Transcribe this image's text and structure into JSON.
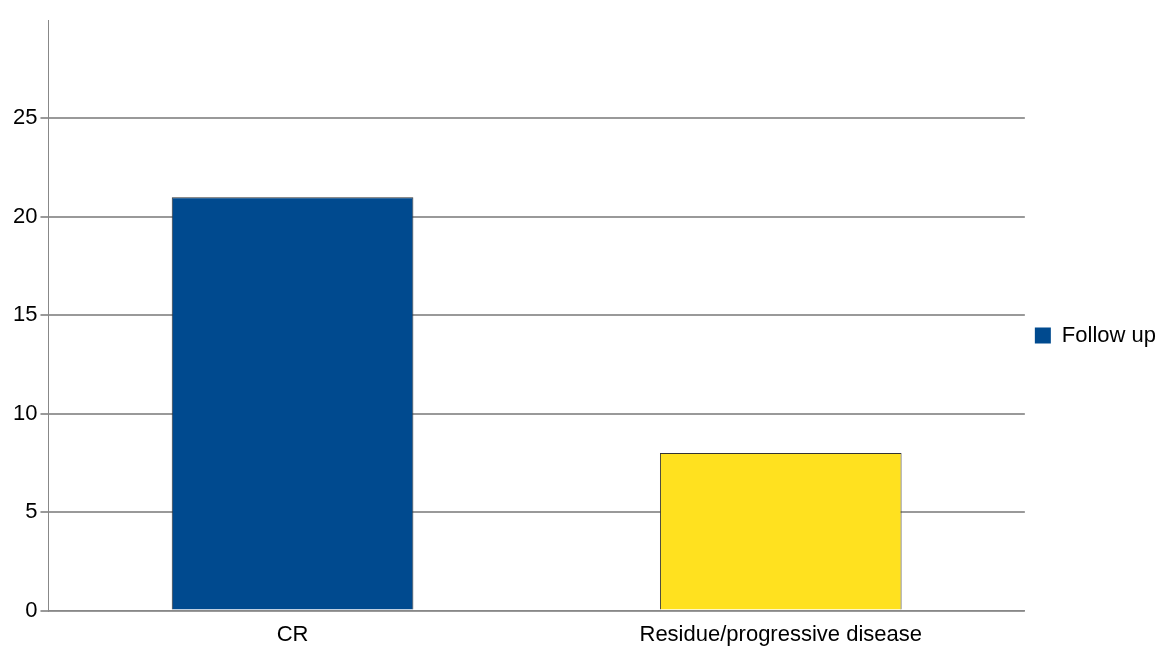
{
  "chart_data": {
    "type": "bar",
    "categories": [
      "CR",
      "Residue/progressive disease"
    ],
    "series": [
      {
        "name": "Follow up",
        "color": "#004a8f",
        "colors": [
          "#004a8f",
          "#ffe11f"
        ],
        "values": [
          21,
          8
        ]
      }
    ],
    "ylim": [
      0,
      30
    ],
    "yticks": [
      0,
      5,
      10,
      15,
      20,
      25
    ],
    "grid": "y",
    "legend": "right"
  }
}
